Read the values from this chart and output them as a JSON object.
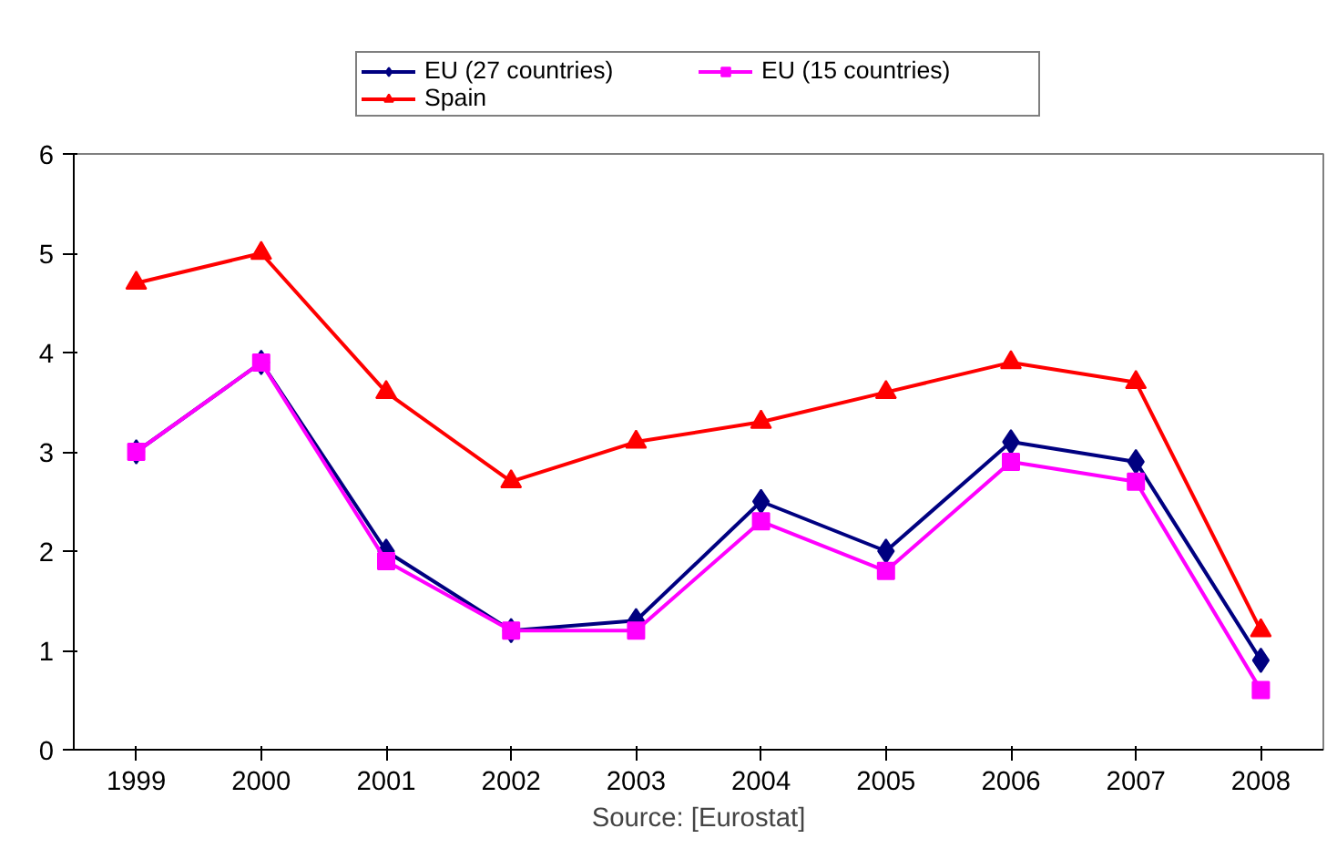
{
  "chart_data": {
    "type": "line",
    "categories": [
      "1999",
      "2000",
      "2001",
      "2002",
      "2003",
      "2004",
      "2005",
      "2006",
      "2007",
      "2008"
    ],
    "series": [
      {
        "name": "EU (27 countries)",
        "color": "#000080",
        "marker": "diamond",
        "values": [
          3.0,
          3.9,
          2.0,
          1.2,
          1.3,
          2.5,
          2.0,
          3.1,
          2.9,
          0.9
        ]
      },
      {
        "name": "EU (15 countries)",
        "color": "#ff00ff",
        "marker": "square",
        "values": [
          3.0,
          3.9,
          1.9,
          1.2,
          1.2,
          2.3,
          1.8,
          2.9,
          2.7,
          0.6
        ]
      },
      {
        "name": "Spain",
        "color": "#ff0000",
        "marker": "triangle",
        "values": [
          4.7,
          5.0,
          3.6,
          2.7,
          3.1,
          3.3,
          3.6,
          3.9,
          3.7,
          1.2
        ]
      }
    ],
    "ylim": [
      0,
      6
    ],
    "yticks": [
      0,
      1,
      2,
      3,
      4,
      5,
      6
    ],
    "grid": false,
    "legend": "top",
    "annotations": [
      "Source: [Eurostat]"
    ]
  }
}
